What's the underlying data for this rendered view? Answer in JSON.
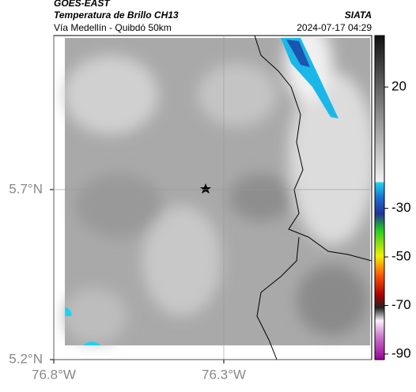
{
  "header": {
    "source": "GOES-EAST",
    "product": "Temperatura de Brillo CH13",
    "region": "Vía Medellín - Quibdó 50km",
    "organization": "SIATA",
    "datetime": "2024-07-17 04:29"
  },
  "map": {
    "lat_range": [
      5.2,
      6.153
    ],
    "lon_range": [
      -76.8,
      -75.865
    ],
    "lat_ticks": [
      {
        "value": 5.7,
        "label": "5.7°N"
      },
      {
        "value": 5.2,
        "label": "5.2°N"
      }
    ],
    "lon_ticks": [
      {
        "value": -76.8,
        "label": "76.8°W"
      },
      {
        "value": -76.3,
        "label": "76.3°W"
      }
    ]
  },
  "colorbar": {
    "range": [
      -92.3,
      41.2
    ],
    "ticks": [
      20,
      -30,
      -50,
      -70,
      -90
    ]
  }
}
